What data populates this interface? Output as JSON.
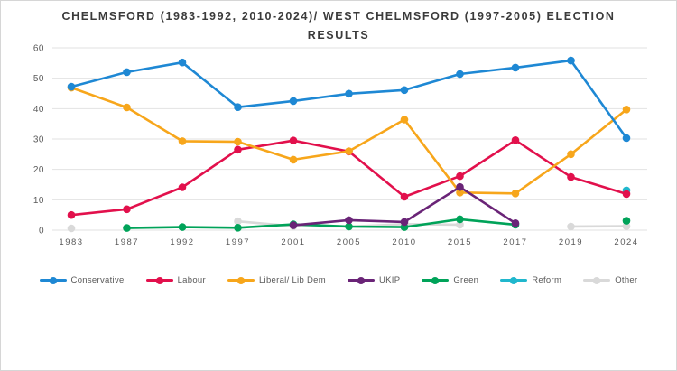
{
  "title": "CHELMSFORD (1983-1992, 2010-2024)/ WEST CHELMSFORD (1997-2005) ELECTION RESULTS",
  "chart_data": {
    "type": "line",
    "title": "CHELMSFORD (1983-1992, 2010-2024)/ WEST CHELMSFORD (1997-2005) ELECTION RESULTS",
    "xlabel": "",
    "ylabel": "",
    "ylim": [
      0,
      60
    ],
    "yticks": [
      0,
      10,
      20,
      30,
      40,
      50,
      60
    ],
    "grid": true,
    "legend_position": "bottom",
    "categories": [
      "1983",
      "1987",
      "1992",
      "1997",
      "2001",
      "2005",
      "2010",
      "2015",
      "2017",
      "2019",
      "2024"
    ],
    "series": [
      {
        "name": "Conservative",
        "color": "#1e88d4",
        "values": [
          47.2,
          52.0,
          55.2,
          40.5,
          42.5,
          44.9,
          46.1,
          51.4,
          53.5,
          55.8,
          30.3
        ]
      },
      {
        "name": "Labour",
        "color": "#e2104c",
        "values": [
          5.0,
          6.9,
          14.1,
          26.5,
          29.5,
          25.9,
          11.0,
          17.8,
          29.6,
          17.5,
          11.9
        ]
      },
      {
        "name": "Liberal/ Lib Dem",
        "color": "#f7a61b",
        "values": [
          46.9,
          40.4,
          29.3,
          29.1,
          23.2,
          26.0,
          36.4,
          12.4,
          12.1,
          25.0,
          39.7
        ]
      },
      {
        "name": "UKIP",
        "color": "#6a2477",
        "values": [
          null,
          null,
          null,
          null,
          1.6,
          3.3,
          2.7,
          14.2,
          2.3,
          null,
          null
        ]
      },
      {
        "name": "Green",
        "color": "#00a359",
        "values": [
          null,
          0.7,
          1.0,
          0.8,
          1.9,
          1.2,
          1.0,
          3.6,
          1.8,
          null,
          3.1
        ]
      },
      {
        "name": "Reform",
        "color": "#20b7cd",
        "values": [
          null,
          null,
          null,
          null,
          null,
          null,
          null,
          null,
          null,
          null,
          13.1
        ]
      },
      {
        "name": "Other",
        "color": "#d9d9d9",
        "values": [
          0.6,
          null,
          null,
          2.9,
          1.3,
          1.2,
          2.0,
          1.8,
          null,
          1.2,
          1.3
        ]
      }
    ]
  }
}
